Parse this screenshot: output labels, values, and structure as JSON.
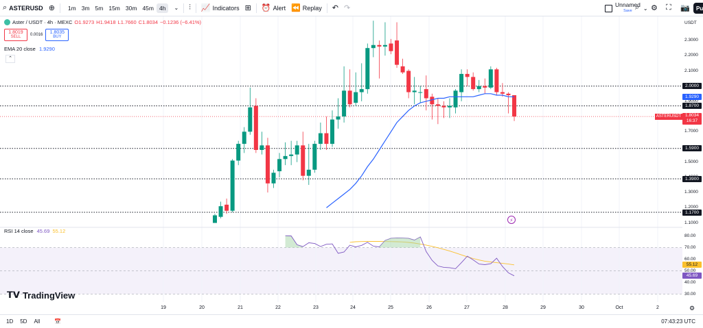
{
  "toolbar": {
    "symbol": "ASTERUSD",
    "intervals": [
      "1m",
      "3m",
      "5m",
      "15m",
      "30m",
      "45m",
      "4h"
    ],
    "active_interval": "4h",
    "indicators_label": "Indicators",
    "alert_label": "Alert",
    "replay_label": "Replay",
    "layout_name": "Unnamed",
    "layout_status": "Save",
    "publish_label": "Pu"
  },
  "legend": {
    "title": "Aster / USDT · 4h · MEXC",
    "open": "O1.9273",
    "high": "H1.9418",
    "low": "L1.7660",
    "close": "C1.8034",
    "change": "−0.1236 (−6.41%)",
    "sell_price": "1.8019",
    "sell_label": "SELL",
    "spread": "0.0016",
    "buy_price": "1.8035",
    "buy_label": "BUY",
    "ema_label": "EMA 20 close",
    "ema_value": "1.9290",
    "rsi_label": "RSI 14 close",
    "rsi_value": "45.69",
    "rsi_ma_value": "55.12"
  },
  "price_axis": {
    "currency": "USDT",
    "labels": [
      "2.3000",
      "2.2000",
      "2.1000",
      "1.9000",
      "1.7000",
      "1.5000",
      "1.4000",
      "1.3000",
      "1.2000",
      "1.1000"
    ],
    "tag_levels": [
      "2.0000",
      "1.8700",
      "1.5900",
      "1.3900",
      "1.1700"
    ],
    "ema_tag": "1.9290",
    "last_symbol": "ASTERUSDT",
    "last_price": "1.8034",
    "countdown": "16:37"
  },
  "rsi_axis": {
    "labels": [
      "80.00",
      "70.00",
      "60.00",
      "50.00",
      "40.00",
      "30.00"
    ],
    "rsi_ma_tag": "55.12",
    "rsi_tag": "45.69"
  },
  "time_axis": {
    "labels": [
      "19",
      "20",
      "21",
      "22",
      "23",
      "24",
      "25",
      "26",
      "27",
      "28",
      "29",
      "30",
      "Oct",
      "2"
    ]
  },
  "bottom": {
    "ranges": [
      "1D",
      "5D",
      "All"
    ],
    "clock": "07:43:23 UTC"
  },
  "brand": "TradingView",
  "colors": {
    "up": "#089981",
    "down": "#f23645",
    "ema": "#2962ff",
    "rsi": "#7e57c2",
    "rsi_ma": "#fbc02d"
  },
  "chart_data": {
    "type": "candlestick",
    "title": "Aster / USDT · 4h · MEXC",
    "candles": [
      {
        "o": 1.1,
        "h": 1.16,
        "l": 1.1,
        "c": 1.15
      },
      {
        "o": 1.14,
        "h": 1.24,
        "l": 1.13,
        "c": 1.21
      },
      {
        "o": 1.22,
        "h": 1.26,
        "l": 1.16,
        "c": 1.18
      },
      {
        "o": 1.18,
        "h": 1.52,
        "l": 1.17,
        "c": 1.51
      },
      {
        "o": 1.51,
        "h": 1.64,
        "l": 1.48,
        "c": 1.62
      },
      {
        "o": 1.62,
        "h": 1.73,
        "l": 1.56,
        "c": 1.7
      },
      {
        "o": 1.7,
        "h": 1.99,
        "l": 1.68,
        "c": 1.86
      },
      {
        "o": 1.87,
        "h": 1.92,
        "l": 1.56,
        "c": 1.58
      },
      {
        "o": 1.58,
        "h": 1.7,
        "l": 1.55,
        "c": 1.61
      },
      {
        "o": 1.61,
        "h": 1.66,
        "l": 1.3,
        "c": 1.36
      },
      {
        "o": 1.36,
        "h": 1.45,
        "l": 1.33,
        "c": 1.43
      },
      {
        "o": 1.44,
        "h": 1.56,
        "l": 1.4,
        "c": 1.52
      },
      {
        "o": 1.52,
        "h": 1.63,
        "l": 1.48,
        "c": 1.54
      },
      {
        "o": 1.54,
        "h": 1.64,
        "l": 1.48,
        "c": 1.55
      },
      {
        "o": 1.55,
        "h": 1.64,
        "l": 1.5,
        "c": 1.61
      },
      {
        "o": 1.61,
        "h": 1.7,
        "l": 1.38,
        "c": 1.41
      },
      {
        "o": 1.41,
        "h": 1.62,
        "l": 1.35,
        "c": 1.45
      },
      {
        "o": 1.45,
        "h": 1.64,
        "l": 1.43,
        "c": 1.62
      },
      {
        "o": 1.62,
        "h": 1.76,
        "l": 1.58,
        "c": 1.69
      },
      {
        "o": 1.69,
        "h": 1.8,
        "l": 1.58,
        "c": 1.62
      },
      {
        "o": 1.62,
        "h": 1.84,
        "l": 1.6,
        "c": 1.78
      },
      {
        "o": 1.78,
        "h": 1.92,
        "l": 1.72,
        "c": 1.8
      },
      {
        "o": 1.8,
        "h": 2.13,
        "l": 1.76,
        "c": 1.97
      },
      {
        "o": 1.97,
        "h": 2.11,
        "l": 1.86,
        "c": 1.88
      },
      {
        "o": 1.89,
        "h": 2.09,
        "l": 1.87,
        "c": 1.96
      },
      {
        "o": 1.96,
        "h": 2.15,
        "l": 1.9,
        "c": 1.98
      },
      {
        "o": 1.98,
        "h": 2.28,
        "l": 1.95,
        "c": 2.25
      },
      {
        "o": 2.25,
        "h": 2.43,
        "l": 2.19,
        "c": 2.27
      },
      {
        "o": 2.27,
        "h": 2.3,
        "l": 2.05,
        "c": 2.26
      },
      {
        "o": 2.26,
        "h": 2.42,
        "l": 2.2,
        "c": 2.27
      },
      {
        "o": 2.28,
        "h": 2.31,
        "l": 2.21,
        "c": 2.23
      },
      {
        "o": 2.3,
        "h": 2.42,
        "l": 2.12,
        "c": 2.14
      },
      {
        "o": 2.13,
        "h": 2.18,
        "l": 2.08,
        "c": 2.09
      },
      {
        "o": 2.1,
        "h": 2.11,
        "l": 1.92,
        "c": 1.96
      },
      {
        "o": 1.96,
        "h": 2.06,
        "l": 1.88,
        "c": 1.97
      },
      {
        "o": 1.96,
        "h": 2.0,
        "l": 1.89,
        "c": 1.96
      },
      {
        "o": 1.98,
        "h": 2.07,
        "l": 1.84,
        "c": 1.92
      },
      {
        "o": 1.93,
        "h": 1.95,
        "l": 1.78,
        "c": 1.88
      },
      {
        "o": 1.88,
        "h": 1.92,
        "l": 1.75,
        "c": 1.87
      },
      {
        "o": 1.87,
        "h": 1.9,
        "l": 1.79,
        "c": 1.86
      },
      {
        "o": 1.86,
        "h": 1.92,
        "l": 1.79,
        "c": 1.87
      },
      {
        "o": 1.86,
        "h": 1.98,
        "l": 1.82,
        "c": 1.97
      },
      {
        "o": 1.96,
        "h": 2.11,
        "l": 1.9,
        "c": 2.08
      },
      {
        "o": 2.08,
        "h": 2.11,
        "l": 2.0,
        "c": 2.06
      },
      {
        "o": 2.06,
        "h": 2.09,
        "l": 1.97,
        "c": 1.98
      },
      {
        "o": 1.98,
        "h": 2.04,
        "l": 1.96,
        "c": 2.0
      },
      {
        "o": 2.0,
        "h": 2.05,
        "l": 1.95,
        "c": 1.99
      },
      {
        "o": 1.99,
        "h": 2.13,
        "l": 1.98,
        "c": 2.11
      },
      {
        "o": 2.11,
        "h": 2.12,
        "l": 1.94,
        "c": 1.96
      },
      {
        "o": 1.96,
        "h": 2.02,
        "l": 1.93,
        "c": 1.95
      },
      {
        "o": 1.95,
        "h": 1.96,
        "l": 1.82,
        "c": 1.94
      },
      {
        "o": 1.94,
        "h": 1.94,
        "l": 1.77,
        "c": 1.8
      }
    ],
    "ema": [
      1.2,
      1.23,
      1.26,
      1.29,
      1.32,
      1.36,
      1.41,
      1.47,
      1.52,
      1.58,
      1.64,
      1.7,
      1.76,
      1.8,
      1.84,
      1.87,
      1.89,
      1.9,
      1.91,
      1.92,
      1.92,
      1.93,
      1.93,
      1.93,
      1.93,
      1.93,
      1.94,
      1.95,
      1.95,
      1.94,
      1.94,
      1.93,
      1.93
    ],
    "ema_start_index": 19,
    "rsi": [
      80.2,
      80.0,
      72.4,
      70.8,
      74.1,
      73.5,
      70.9,
      72.8,
      73.1,
      65.0,
      66.2,
      72.0,
      70.5,
      71.9,
      74.5,
      71.2,
      70.6,
      76.1,
      78.0,
      78.3,
      78.2,
      77.9,
      76.4,
      79.1,
      66.5,
      59.0,
      54.2,
      53.0,
      52.7,
      51.8,
      57.0,
      62.6,
      59.4,
      55.8,
      55.3,
      56.1,
      60.8,
      53.7,
      48.3,
      45.7
    ],
    "rsi_start_index": 12,
    "rsi_ma": [
      74.5,
      75.0,
      75.2,
      75.3,
      75.3,
      75.3,
      75.2,
      75.1,
      75.0,
      74.8,
      74.4,
      73.8,
      73.0,
      72.1,
      71.0,
      69.8,
      68.4,
      67.0,
      65.4,
      63.7,
      62.0,
      60.6,
      59.3,
      58.3,
      57.6,
      57.0,
      56.4,
      55.8,
      55.1
    ],
    "rsi_ma_start_index": 23,
    "price_range": [
      1.08,
      2.44
    ],
    "rsi_range": [
      25,
      85
    ],
    "horizontal_levels": [
      2.0,
      1.87,
      1.59,
      1.39,
      1.17
    ],
    "rsi_band": [
      30,
      70
    ]
  }
}
